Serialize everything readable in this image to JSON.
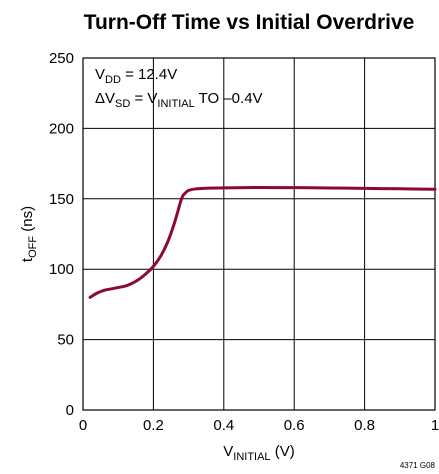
{
  "chart_data": {
    "type": "line",
    "title": "Turn-Off Time vs Initial Overdrive",
    "xlabel": {
      "main": "V",
      "sub": "INITIAL",
      "unit": " (V)"
    },
    "ylabel": {
      "main": "t",
      "sub": "OFF",
      "unit": " (ns)"
    },
    "xlim": [
      0,
      1
    ],
    "ylim": [
      0,
      250
    ],
    "xticks": [
      0,
      0.2,
      0.4,
      0.6,
      0.8,
      1
    ],
    "xtick_labels": [
      "0",
      "0.2",
      "0.4",
      "0.6",
      "0.8",
      "1"
    ],
    "yticks": [
      0,
      50,
      100,
      150,
      200,
      250
    ],
    "ytick_labels": [
      "0",
      "50",
      "100",
      "150",
      "200",
      "250"
    ],
    "grid": true,
    "annotations": {
      "line1": {
        "a": "V",
        "a_sub": "DD",
        "b": " = 12.4V"
      },
      "line2": {
        "a": "ΔV",
        "a_sub": "SD",
        "b": " = V",
        "b_sub": "INITIAL",
        "c": " TO –0.4V"
      }
    },
    "figure_id": "4371 G08",
    "line_color": "#8b0a2e",
    "series": [
      {
        "x": [
          0.02,
          0.04,
          0.06,
          0.08,
          0.1,
          0.12,
          0.14,
          0.16,
          0.18,
          0.2,
          0.22,
          0.24,
          0.26,
          0.28,
          0.29,
          0.3,
          0.32,
          0.35,
          0.4,
          0.5,
          0.6,
          0.7,
          0.8,
          0.9,
          1.0
        ],
        "values": [
          80,
          83,
          85,
          86,
          87,
          88,
          90,
          93,
          97,
          102,
          109,
          119,
          133,
          150,
          154,
          156,
          157,
          157.5,
          157.8,
          158,
          157.9,
          157.7,
          157.4,
          157.1,
          156.8
        ]
      }
    ]
  }
}
